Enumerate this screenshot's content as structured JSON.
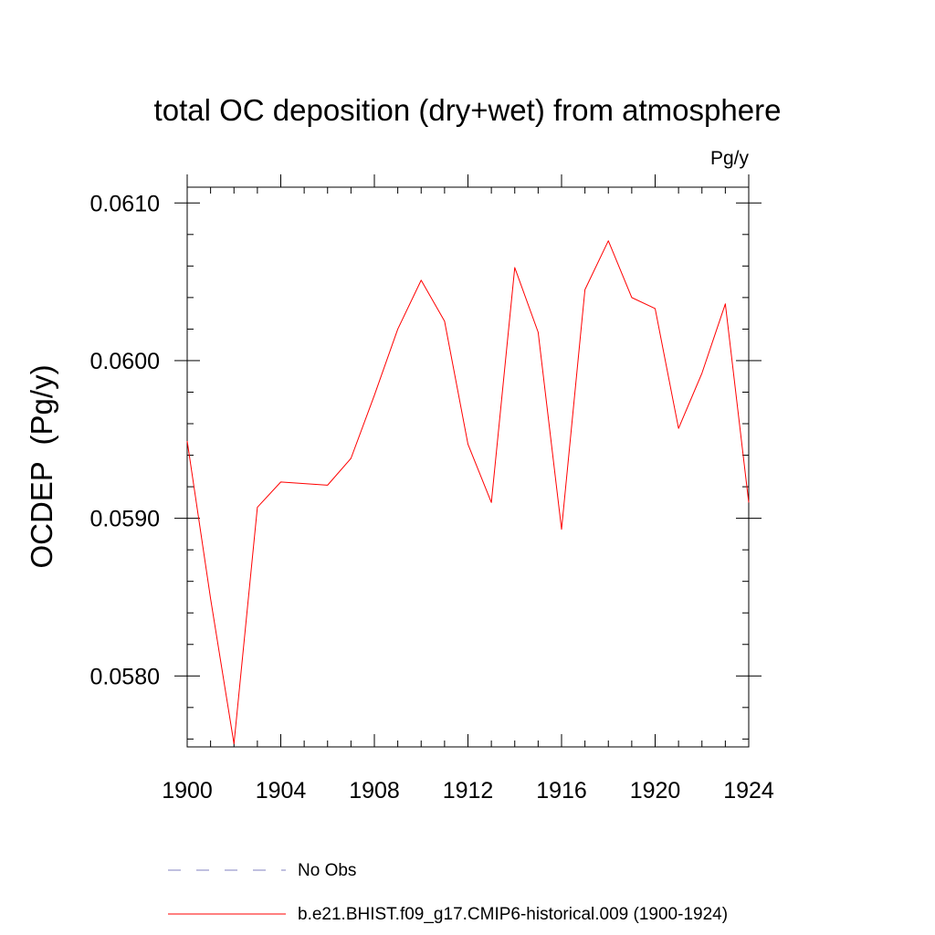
{
  "chart_data": {
    "type": "line",
    "title": "total OC deposition (dry+wet) from atmosphere",
    "units_label": "Pg/y",
    "ylabel": "OCDEP  (Pg/y)",
    "xlabel": "",
    "xlim": [
      1900,
      1924
    ],
    "ylim": [
      0.05755,
      0.0611
    ],
    "x_ticks": [
      1900,
      1904,
      1908,
      1912,
      1916,
      1920,
      1924
    ],
    "x_tick_labels": [
      "1900",
      "1904",
      "1908",
      "1912",
      "1916",
      "1920",
      "1924"
    ],
    "y_ticks": [
      0.058,
      0.059,
      0.06,
      0.061
    ],
    "y_tick_labels": [
      "0.0580",
      "0.0590",
      "0.0600",
      "0.0610"
    ],
    "y_minor_step": 0.0002,
    "x_minor_step": 1,
    "series": [
      {
        "name": "b.e21.BHIST.f09_g17.CMIP6-historical.009 (1900-1924)",
        "color": "#ff0000",
        "style": "solid",
        "x": [
          1900,
          1901,
          1902,
          1903,
          1904,
          1905,
          1906,
          1907,
          1908,
          1909,
          1910,
          1911,
          1912,
          1913,
          1914,
          1915,
          1916,
          1917,
          1918,
          1919,
          1920,
          1921,
          1922,
          1923,
          1924
        ],
        "values": [
          0.05949,
          0.05849,
          0.05757,
          0.05907,
          0.05923,
          0.05922,
          0.05921,
          0.05938,
          0.05978,
          0.0602,
          0.06051,
          0.06025,
          0.05947,
          0.0591,
          0.06059,
          0.06018,
          0.05893,
          0.06045,
          0.06076,
          0.0604,
          0.06033,
          0.05957,
          0.05992,
          0.06036,
          0.0591
        ]
      }
    ],
    "legend": [
      {
        "label": "No Obs",
        "color": "#8080c0",
        "style": "dashed"
      },
      {
        "label": "b.e21.BHIST.f09_g17.CMIP6-historical.009 (1900-1924)",
        "color": "#ff0000",
        "style": "solid"
      }
    ],
    "legend_position": "bottom"
  }
}
